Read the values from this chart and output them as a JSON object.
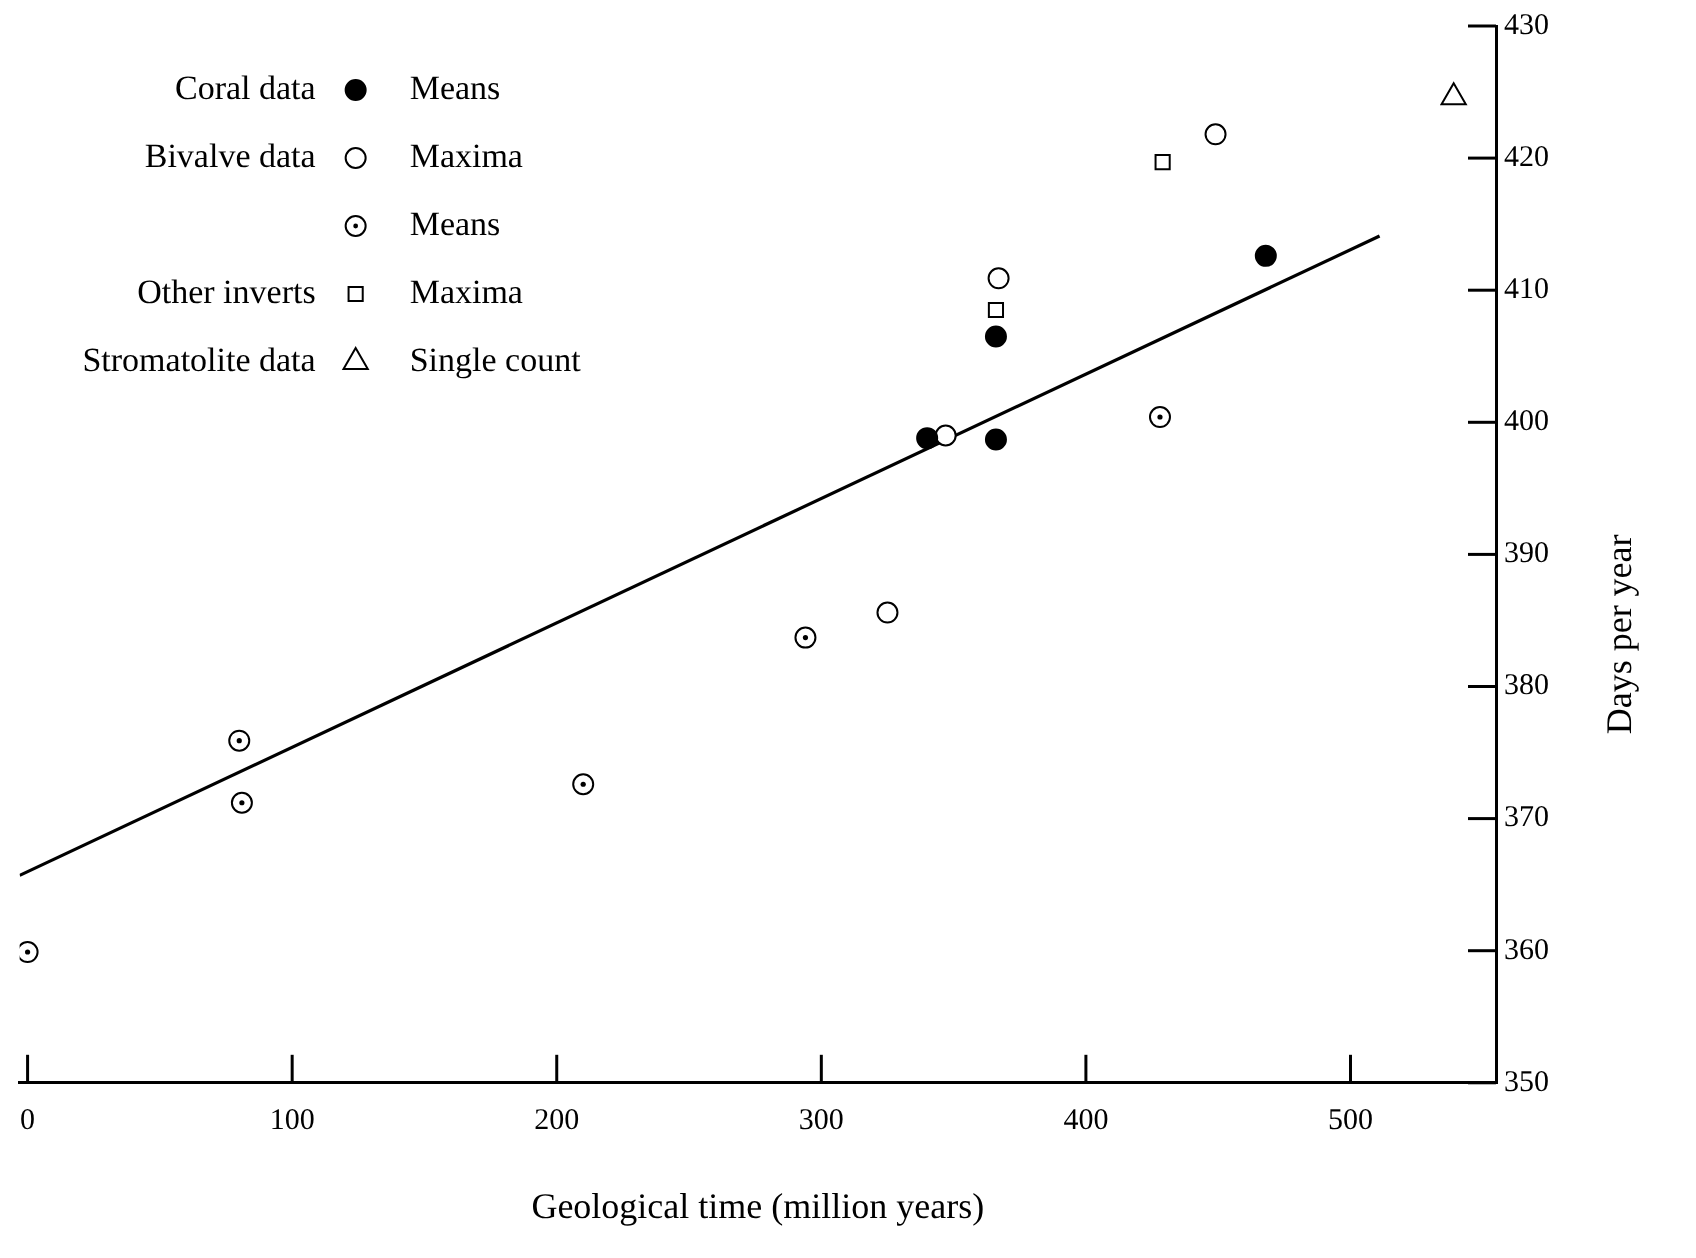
{
  "chart_data": {
    "type": "scatter",
    "xlabel": "Geological time (million years)",
    "ylabel": "Days per year",
    "xlim": [
      -3,
      555
    ],
    "xticks": [
      0,
      100,
      200,
      300,
      400,
      500
    ],
    "ylim": [
      350,
      430
    ],
    "yticks": [
      350,
      360,
      370,
      380,
      390,
      400,
      410,
      420,
      430
    ],
    "grid": false,
    "legend": "top left",
    "annotations": [
      "Coral data",
      "Bivalve data",
      "Other inverts",
      "Stromatolite data"
    ],
    "series": [
      {
        "name": "Means",
        "color": "#000000",
        "marker": "circle",
        "x": [
          340,
          366,
          366,
          468
        ],
        "values": [
          398.8,
          398.7,
          406.5,
          412.6
        ]
      },
      {
        "name": "Maxima",
        "color": "#000000",
        "marker": "circle",
        "x": [
          325,
          347,
          367,
          449
        ],
        "values": [
          385.6,
          399.0,
          410.9,
          421.8
        ]
      },
      {
        "name": "Means",
        "color": "#000000",
        "marker": "circle",
        "x": [
          0,
          80,
          81,
          210,
          294,
          428
        ],
        "values": [
          359.9,
          375.9,
          371.2,
          372.6,
          383.7,
          400.4
        ]
      },
      {
        "name": "Maxima",
        "color": "#000000",
        "marker": "square",
        "x": [
          366,
          429
        ],
        "values": [
          408.5,
          419.7
        ]
      },
      {
        "name": "Single count",
        "color": "#000000",
        "marker": "triangle",
        "x": [
          539
        ],
        "values": [
          424.6
        ]
      },
      {
        "type": "line",
        "color": "#000000",
        "marker": "none",
        "line_style": "solid",
        "x": [
          -3,
          511
        ],
        "values": [
          365.7,
          414.1
        ]
      }
    ]
  }
}
